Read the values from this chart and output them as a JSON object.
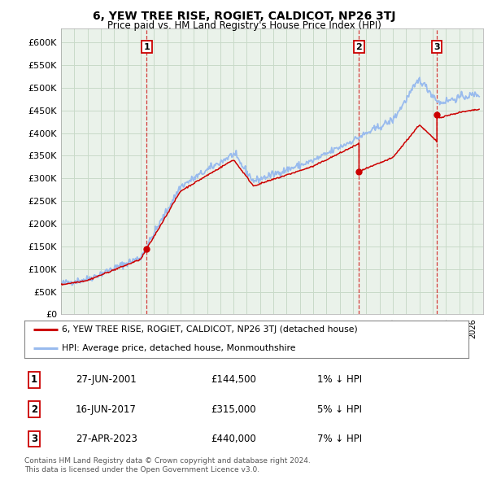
{
  "title": "6, YEW TREE RISE, ROGIET, CALDICOT, NP26 3TJ",
  "subtitle": "Price paid vs. HM Land Registry's House Price Index (HPI)",
  "ylim": [
    0,
    630000
  ],
  "yticks": [
    0,
    50000,
    100000,
    150000,
    200000,
    250000,
    300000,
    350000,
    400000,
    450000,
    500000,
    550000,
    600000
  ],
  "ytick_labels": [
    "£0",
    "£50K",
    "£100K",
    "£150K",
    "£200K",
    "£250K",
    "£300K",
    "£350K",
    "£400K",
    "£450K",
    "£500K",
    "£550K",
    "£600K"
  ],
  "xlim_start": 1995.0,
  "xlim_end": 2026.8,
  "transactions": [
    {
      "num": 1,
      "date": "27-JUN-2001",
      "price": 144500,
      "year": 2001.46,
      "label": "1% ↓ HPI"
    },
    {
      "num": 2,
      "date": "16-JUN-2017",
      "price": 315000,
      "year": 2017.45,
      "label": "5% ↓ HPI"
    },
    {
      "num": 3,
      "date": "27-APR-2023",
      "price": 440000,
      "year": 2023.32,
      "label": "7% ↓ HPI"
    }
  ],
  "legend_property": "6, YEW TREE RISE, ROGIET, CALDICOT, NP26 3TJ (detached house)",
  "legend_hpi": "HPI: Average price, detached house, Monmouthshire",
  "footer_line1": "Contains HM Land Registry data © Crown copyright and database right 2024.",
  "footer_line2": "This data is licensed under the Open Government Licence v3.0.",
  "property_color": "#cc0000",
  "hpi_color": "#99bbee",
  "grid_color": "#c8dac8",
  "plot_bg_color": "#eaf2ea"
}
